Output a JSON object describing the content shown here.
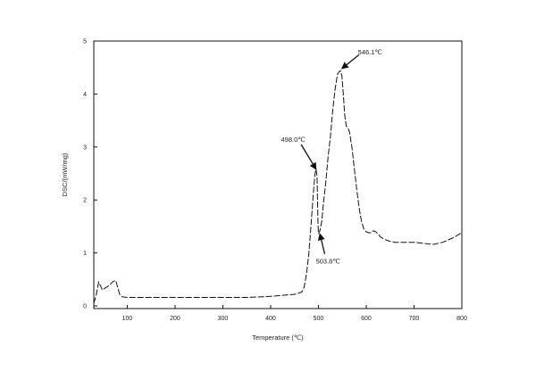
{
  "chart_data": {
    "type": "line",
    "title": "",
    "xlabel": "Temperature (℃)",
    "ylabel": "DSC/(mW/mg)",
    "xlim": [
      30,
      800
    ],
    "ylim": [
      -0.05,
      5
    ],
    "x_ticks": [
      "100",
      "200",
      "300",
      "400",
      "500",
      "600",
      "700",
      "800"
    ],
    "y_ticks": [
      "0",
      "1",
      "2",
      "3",
      "4",
      "5"
    ],
    "grid": false,
    "series": [
      {
        "x": [
          30,
          35,
          40,
          44,
          48,
          52,
          58,
          64,
          70,
          76,
          80,
          84,
          90,
          100,
          150,
          200,
          250,
          300,
          350,
          400,
          450,
          465,
          470,
          475,
          480,
          485,
          490,
          493,
          495,
          497,
          499,
          500,
          503,
          507,
          510,
          515,
          520,
          525,
          530,
          535,
          540,
          543,
          546,
          549,
          552,
          555,
          558,
          562,
          565,
          570,
          575,
          580,
          585,
          590,
          595,
          600,
          605,
          610,
          615,
          620,
          625,
          630,
          640,
          650,
          660,
          680,
          700,
          720,
          740,
          760,
          780,
          800
        ],
        "y": [
          0.05,
          0.2,
          0.45,
          0.38,
          0.3,
          0.33,
          0.36,
          0.4,
          0.46,
          0.48,
          0.35,
          0.22,
          0.17,
          0.16,
          0.16,
          0.16,
          0.16,
          0.16,
          0.16,
          0.18,
          0.22,
          0.26,
          0.35,
          0.6,
          1.0,
          1.6,
          2.2,
          2.5,
          2.58,
          2.45,
          1.6,
          1.36,
          1.42,
          1.6,
          1.9,
          2.3,
          2.8,
          3.2,
          3.7,
          4.1,
          4.38,
          4.42,
          4.44,
          4.35,
          4.0,
          3.6,
          3.4,
          3.35,
          3.28,
          3.0,
          2.6,
          2.2,
          1.85,
          1.6,
          1.45,
          1.4,
          1.38,
          1.38,
          1.42,
          1.4,
          1.35,
          1.3,
          1.25,
          1.22,
          1.2,
          1.2,
          1.2,
          1.18,
          1.16,
          1.2,
          1.28,
          1.38
        ]
      }
    ],
    "annotations": [
      {
        "text": "498.0℃",
        "x": 495,
        "y": 2.58,
        "label_x": 447,
        "label_y": 3.1,
        "arrow": true
      },
      {
        "text": "546.1℃",
        "x": 549,
        "y": 4.48,
        "label_x": 608,
        "label_y": 4.75,
        "arrow": true
      },
      {
        "text": "503.8℃",
        "x": 503,
        "y": 1.36,
        "label_x": 520,
        "label_y": 0.8,
        "arrow": true
      }
    ]
  }
}
